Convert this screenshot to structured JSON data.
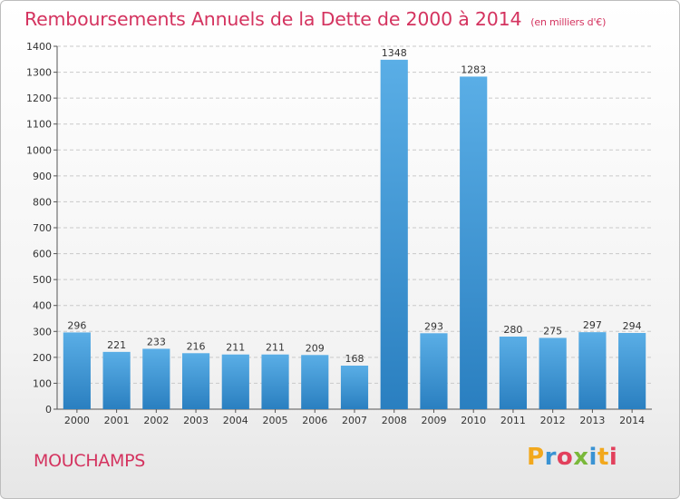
{
  "header": {
    "title": "Remboursements Annuels de la Dette de 2000 à 2014",
    "unit": "(en milliers d'€)"
  },
  "footer": {
    "commune": "MOUCHAMPS",
    "logo": "Proxiti"
  },
  "colors": {
    "bar_light": "#5aaee6",
    "bar_dark": "#2a7fc0",
    "title": "#d4335f",
    "grid": "#c9c9c9"
  },
  "chart_data": {
    "type": "bar",
    "title": "Remboursements Annuels de la Dette de 2000 à 2014",
    "subtitle": "(en milliers d'€)",
    "xlabel": "",
    "ylabel": "",
    "categories": [
      "2000",
      "2001",
      "2002",
      "2003",
      "2004",
      "2005",
      "2006",
      "2007",
      "2008",
      "2009",
      "2010",
      "2011",
      "2012",
      "2013",
      "2014"
    ],
    "values": [
      296,
      221,
      233,
      216,
      211,
      211,
      209,
      168,
      1348,
      293,
      1283,
      280,
      275,
      297,
      294
    ],
    "data_labels": [
      "296",
      "221",
      "233",
      "216",
      "211",
      "211",
      "209",
      "168",
      "1348",
      "293",
      "1283",
      "280",
      "275",
      "297",
      "294"
    ],
    "ylim": [
      0,
      1400
    ],
    "yticks": [
      0,
      100,
      200,
      300,
      400,
      500,
      600,
      700,
      800,
      900,
      1000,
      1100,
      1200,
      1300,
      1400
    ],
    "grid": true
  }
}
